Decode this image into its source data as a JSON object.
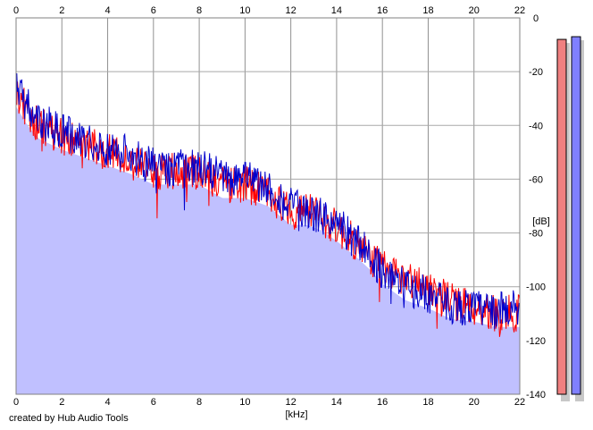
{
  "chart_data": {
    "type": "line",
    "xlabel": "[kHz]",
    "ylabel": "[dB]",
    "x_ticks": [
      "0",
      "2",
      "4",
      "6",
      "8",
      "10",
      "12",
      "14",
      "16",
      "18",
      "20",
      "22"
    ],
    "y_ticks": [
      "0",
      "-20",
      "-40",
      "-60",
      "-80",
      "-100",
      "-120",
      "-140"
    ],
    "xlim": [
      0,
      22
    ],
    "ylim": [
      -140,
      0
    ],
    "grid": true,
    "series": [
      {
        "channel": "left",
        "color": "#ff0000",
        "x": [
          0,
          0.5,
          1,
          2,
          3,
          4,
          5,
          6,
          7,
          8,
          9,
          10,
          11,
          12,
          13,
          14,
          15,
          16,
          17,
          18,
          19,
          20,
          21,
          22
        ],
        "y": [
          -28,
          -35,
          -40,
          -44,
          -47,
          -50,
          -53,
          -57,
          -57,
          -57,
          -62,
          -62,
          -65,
          -72,
          -72,
          -78,
          -85,
          -93,
          -97,
          -100,
          -105,
          -108,
          -110,
          -110
        ]
      },
      {
        "channel": "right",
        "color": "#0000cc",
        "x": [
          0,
          0.5,
          1,
          2,
          3,
          4,
          5,
          6,
          7,
          8,
          9,
          10,
          11,
          12,
          13,
          14,
          15,
          16,
          17,
          18,
          19,
          20,
          21,
          22
        ],
        "y": [
          -25,
          -33,
          -38,
          -42,
          -46,
          -48,
          -51,
          -55,
          -56,
          -55,
          -59,
          -60,
          -63,
          -70,
          -73,
          -76,
          -84,
          -94,
          -100,
          -103,
          -107,
          -108,
          -109,
          -107
        ]
      }
    ],
    "fill_color": "#c0c0ff",
    "level_meters": [
      {
        "channel": "left",
        "color": "#f08080",
        "level_db": -8
      },
      {
        "channel": "right",
        "color": "#8080ff",
        "level_db": -7
      }
    ]
  },
  "footer": {
    "credit": "created by Hub Audio Tools"
  }
}
